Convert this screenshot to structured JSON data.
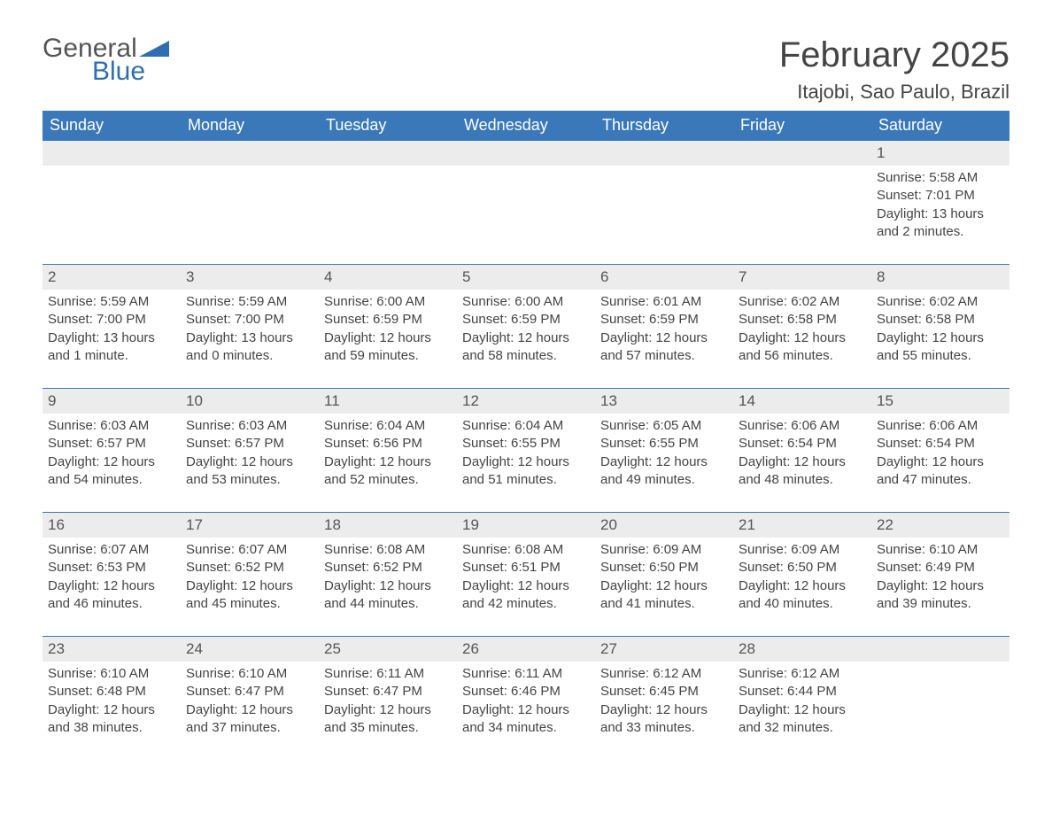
{
  "logo": {
    "text1": "General",
    "text2": "Blue",
    "mark_color": "#2f6fb0"
  },
  "title": "February 2025",
  "location": "Itajobi, Sao Paulo, Brazil",
  "colors": {
    "header_bg": "#3a78b9",
    "header_fg": "#ffffff",
    "daynum_bg": "#ececec",
    "daynum_border_top": "#3a78b9",
    "body_text": "#444444",
    "page_bg": "#ffffff"
  },
  "typography": {
    "base_family": "Arial",
    "title_size_pt": 30,
    "location_size_pt": 17,
    "header_size_pt": 14,
    "cell_size_pt": 11
  },
  "day_headers": [
    "Sunday",
    "Monday",
    "Tuesday",
    "Wednesday",
    "Thursday",
    "Friday",
    "Saturday"
  ],
  "weeks": [
    {
      "nums": [
        "",
        "",
        "",
        "",
        "",
        "",
        "1"
      ],
      "cells": [
        "",
        "",
        "",
        "",
        "",
        "",
        "Sunrise: 5:58 AM\nSunset: 7:01 PM\nDaylight: 13 hours and 2 minutes."
      ]
    },
    {
      "nums": [
        "2",
        "3",
        "4",
        "5",
        "6",
        "7",
        "8"
      ],
      "cells": [
        "Sunrise: 5:59 AM\nSunset: 7:00 PM\nDaylight: 13 hours and 1 minute.",
        "Sunrise: 5:59 AM\nSunset: 7:00 PM\nDaylight: 13 hours and 0 minutes.",
        "Sunrise: 6:00 AM\nSunset: 6:59 PM\nDaylight: 12 hours and 59 minutes.",
        "Sunrise: 6:00 AM\nSunset: 6:59 PM\nDaylight: 12 hours and 58 minutes.",
        "Sunrise: 6:01 AM\nSunset: 6:59 PM\nDaylight: 12 hours and 57 minutes.",
        "Sunrise: 6:02 AM\nSunset: 6:58 PM\nDaylight: 12 hours and 56 minutes.",
        "Sunrise: 6:02 AM\nSunset: 6:58 PM\nDaylight: 12 hours and 55 minutes."
      ]
    },
    {
      "nums": [
        "9",
        "10",
        "11",
        "12",
        "13",
        "14",
        "15"
      ],
      "cells": [
        "Sunrise: 6:03 AM\nSunset: 6:57 PM\nDaylight: 12 hours and 54 minutes.",
        "Sunrise: 6:03 AM\nSunset: 6:57 PM\nDaylight: 12 hours and 53 minutes.",
        "Sunrise: 6:04 AM\nSunset: 6:56 PM\nDaylight: 12 hours and 52 minutes.",
        "Sunrise: 6:04 AM\nSunset: 6:55 PM\nDaylight: 12 hours and 51 minutes.",
        "Sunrise: 6:05 AM\nSunset: 6:55 PM\nDaylight: 12 hours and 49 minutes.",
        "Sunrise: 6:06 AM\nSunset: 6:54 PM\nDaylight: 12 hours and 48 minutes.",
        "Sunrise: 6:06 AM\nSunset: 6:54 PM\nDaylight: 12 hours and 47 minutes."
      ]
    },
    {
      "nums": [
        "16",
        "17",
        "18",
        "19",
        "20",
        "21",
        "22"
      ],
      "cells": [
        "Sunrise: 6:07 AM\nSunset: 6:53 PM\nDaylight: 12 hours and 46 minutes.",
        "Sunrise: 6:07 AM\nSunset: 6:52 PM\nDaylight: 12 hours and 45 minutes.",
        "Sunrise: 6:08 AM\nSunset: 6:52 PM\nDaylight: 12 hours and 44 minutes.",
        "Sunrise: 6:08 AM\nSunset: 6:51 PM\nDaylight: 12 hours and 42 minutes.",
        "Sunrise: 6:09 AM\nSunset: 6:50 PM\nDaylight: 12 hours and 41 minutes.",
        "Sunrise: 6:09 AM\nSunset: 6:50 PM\nDaylight: 12 hours and 40 minutes.",
        "Sunrise: 6:10 AM\nSunset: 6:49 PM\nDaylight: 12 hours and 39 minutes."
      ]
    },
    {
      "nums": [
        "23",
        "24",
        "25",
        "26",
        "27",
        "28",
        ""
      ],
      "cells": [
        "Sunrise: 6:10 AM\nSunset: 6:48 PM\nDaylight: 12 hours and 38 minutes.",
        "Sunrise: 6:10 AM\nSunset: 6:47 PM\nDaylight: 12 hours and 37 minutes.",
        "Sunrise: 6:11 AM\nSunset: 6:47 PM\nDaylight: 12 hours and 35 minutes.",
        "Sunrise: 6:11 AM\nSunset: 6:46 PM\nDaylight: 12 hours and 34 minutes.",
        "Sunrise: 6:12 AM\nSunset: 6:45 PM\nDaylight: 12 hours and 33 minutes.",
        "Sunrise: 6:12 AM\nSunset: 6:44 PM\nDaylight: 12 hours and 32 minutes.",
        ""
      ]
    }
  ]
}
